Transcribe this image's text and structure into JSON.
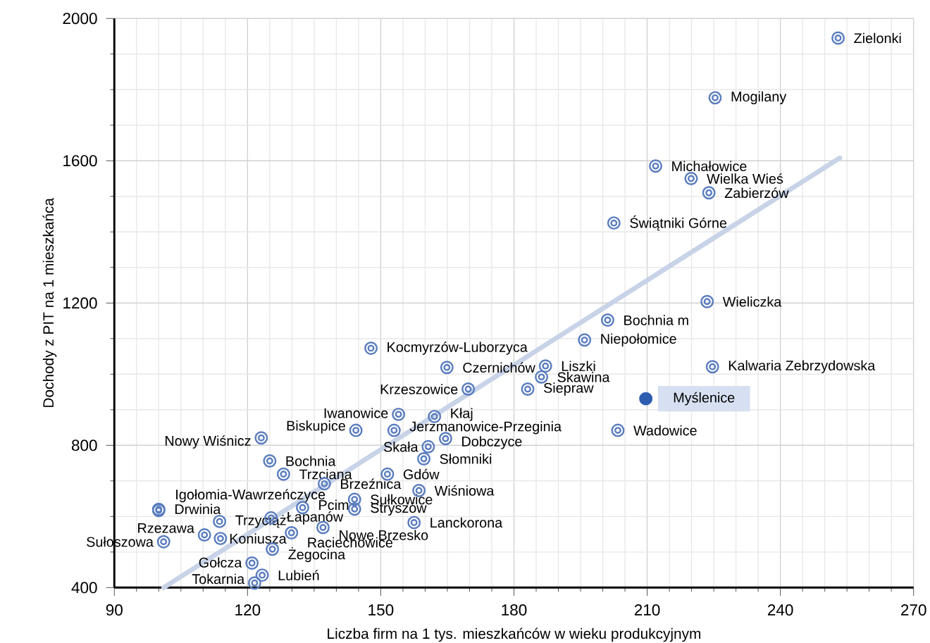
{
  "chart_data": {
    "type": "scatter",
    "xlabel": "Liczba firm na 1 tys. mieszkańców w wieku produkcyjnym",
    "ylabel": "Dochody z PIT na 1 mieszkańca",
    "xlim": [
      90,
      270
    ],
    "xticks": [
      90,
      120,
      150,
      180,
      210,
      240,
      270
    ],
    "ylim": [
      400,
      2000
    ],
    "yticks": [
      400,
      800,
      1200,
      1600,
      2000
    ],
    "grid": true,
    "marker": "circle",
    "series": [
      {
        "type": "scatter",
        "color": "#5a7dbf",
        "x": [
          253.0,
          225.3,
          211.9,
          219.9,
          223.9,
          202.5,
          223.5,
          201.1,
          195.9,
          147.8,
          164.9,
          187.1,
          224.7,
          186.2,
          169.7,
          183.1,
          209.7,
          154.0,
          162.1,
          144.4,
          153.0,
          203.4,
          123.1,
          164.6,
          160.7,
          125.0,
          159.7,
          128.1,
          151.5,
          137.3,
          158.6,
          144.1,
          100.0,
          100.0,
          132.4,
          144.1,
          113.7,
          125.3,
          157.5,
          137.0,
          110.3,
          129.9,
          113.9,
          101.1,
          125.6,
          121.0,
          123.3,
          121.6
        ],
        "values": [
          1945,
          1777,
          1585,
          1550,
          1510,
          1425,
          1204,
          1152,
          1096,
          1073,
          1019,
          1023,
          1021,
          992,
          958,
          958,
          931,
          887,
          881,
          842,
          842,
          842,
          821,
          819,
          796,
          756,
          762,
          719,
          719,
          692,
          673,
          648,
          620,
          617,
          625,
          621,
          586,
          596,
          583,
          569,
          548,
          554,
          538,
          529,
          508,
          469,
          435,
          413
        ],
        "colors": [
          "#5a7dbf",
          "#5a7dbf",
          "#5a7dbf",
          "#5a7dbf",
          "#5a7dbf",
          "#5a7dbf",
          "#5a7dbf",
          "#5a7dbf",
          "#5a7dbf",
          "#5a7dbf",
          "#5a7dbf",
          "#5a7dbf",
          "#5a7dbf",
          "#5a7dbf",
          "#5a7dbf",
          "#5a7dbf",
          "#2e5db0",
          "#5a7dbf",
          "#5a7dbf",
          "#5a7dbf",
          "#5a7dbf",
          "#5a7dbf",
          "#5a7dbf",
          "#5a7dbf",
          "#5a7dbf",
          "#5a7dbf",
          "#5a7dbf",
          "#5a7dbf",
          "#5a7dbf",
          "#5a7dbf",
          "#5a7dbf",
          "#5a7dbf",
          "#5a7dbf",
          "#5a7dbf",
          "#5a7dbf",
          "#5a7dbf",
          "#5a7dbf",
          "#5a7dbf",
          "#5a7dbf",
          "#5a7dbf",
          "#5a7dbf",
          "#5a7dbf",
          "#5a7dbf",
          "#5a7dbf",
          "#5a7dbf",
          "#5a7dbf",
          "#5a7dbf",
          "#5a7dbf"
        ]
      },
      {
        "type": "line",
        "marker": "none",
        "color": "#c8d3e8",
        "x": [
          101.1,
          253.4
        ],
        "values": [
          400,
          1608
        ]
      }
    ],
    "annotations": [
      {
        "text": "Zielonki",
        "x": 253.0,
        "y": 1945
      },
      {
        "text": "Mogilany",
        "x": 225.3,
        "y": 1777
      },
      {
        "text": "Michałowice",
        "x": 211.9,
        "y": 1585
      },
      {
        "text": "Wielka Wieś",
        "x": 219.9,
        "y": 1550
      },
      {
        "text": "Zabierzów",
        "x": 223.9,
        "y": 1510
      },
      {
        "text": "Świątniki Górne",
        "x": 202.5,
        "y": 1425
      },
      {
        "text": "Wieliczka",
        "x": 223.5,
        "y": 1204
      },
      {
        "text": "Bochnia m",
        "x": 201.1,
        "y": 1152
      },
      {
        "text": "Niepołomice",
        "x": 195.9,
        "y": 1096
      },
      {
        "text": "Kocmyrzów-Luborzyca",
        "x": 147.8,
        "y": 1073
      },
      {
        "text": "Czernichów",
        "x": 164.9,
        "y": 1019
      },
      {
        "text": "Liszki",
        "x": 187.1,
        "y": 1023
      },
      {
        "text": "Kalwaria Zebrzydowska",
        "x": 224.7,
        "y": 1021
      },
      {
        "text": "Skawina",
        "x": 186.2,
        "y": 992
      },
      {
        "text": "Krzeszowice",
        "x": 169.7,
        "y": 958
      },
      {
        "text": "Siepraw",
        "x": 183.1,
        "y": 958
      },
      {
        "text": "Myślenice",
        "x": 209.7,
        "y": 931
      },
      {
        "text": "Iwanowice",
        "x": 154.0,
        "y": 887
      },
      {
        "text": "Kłaj",
        "x": 162.1,
        "y": 881
      },
      {
        "text": "Biskupice",
        "x": 144.4,
        "y": 842
      },
      {
        "text": "Jerzmanowice-Przeginia",
        "x": 153.0,
        "y": 842
      },
      {
        "text": "Wadowice",
        "x": 203.4,
        "y": 842
      },
      {
        "text": "Nowy Wiśnicz",
        "x": 123.1,
        "y": 821
      },
      {
        "text": "Dobczyce",
        "x": 164.6,
        "y": 819
      },
      {
        "text": "Skała",
        "x": 160.7,
        "y": 796
      },
      {
        "text": "Bochnia",
        "x": 125.0,
        "y": 756
      },
      {
        "text": "Słomniki",
        "x": 159.7,
        "y": 762
      },
      {
        "text": "Trzciana",
        "x": 128.1,
        "y": 719
      },
      {
        "text": "Gdów",
        "x": 151.5,
        "y": 719
      },
      {
        "text": "Brzeźnica",
        "x": 137.3,
        "y": 692
      },
      {
        "text": "Wiśniowa",
        "x": 158.6,
        "y": 673
      },
      {
        "text": "Sułkowice",
        "x": 144.1,
        "y": 648
      },
      {
        "text": "Igołomia-Wawrzeńczyce",
        "x": 100.0,
        "y": 620
      },
      {
        "text": "Drwinia",
        "x": 100.0,
        "y": 617
      },
      {
        "text": "Pcim",
        "x": 132.4,
        "y": 625
      },
      {
        "text": "Stryszów",
        "x": 144.1,
        "y": 621
      },
      {
        "text": "Trzyciąż",
        "x": 113.7,
        "y": 586
      },
      {
        "text": "Łapanów",
        "x": 125.3,
        "y": 596
      },
      {
        "text": "Lanckorona",
        "x": 157.5,
        "y": 583
      },
      {
        "text": "Nowe Brzesko",
        "x": 137.0,
        "y": 569
      },
      {
        "text": "Rzezawa",
        "x": 110.3,
        "y": 548
      },
      {
        "text": "Raciechowice",
        "x": 129.9,
        "y": 554
      },
      {
        "text": "Koniusza",
        "x": 113.9,
        "y": 538
      },
      {
        "text": "Sułoszowa",
        "x": 101.1,
        "y": 529
      },
      {
        "text": "Żegocina",
        "x": 125.6,
        "y": 508
      },
      {
        "text": "Gołcza",
        "x": 121.0,
        "y": 469
      },
      {
        "text": "Lubień",
        "x": 123.3,
        "y": 435
      },
      {
        "text": "Tokarnia",
        "x": 121.6,
        "y": 413
      }
    ]
  }
}
